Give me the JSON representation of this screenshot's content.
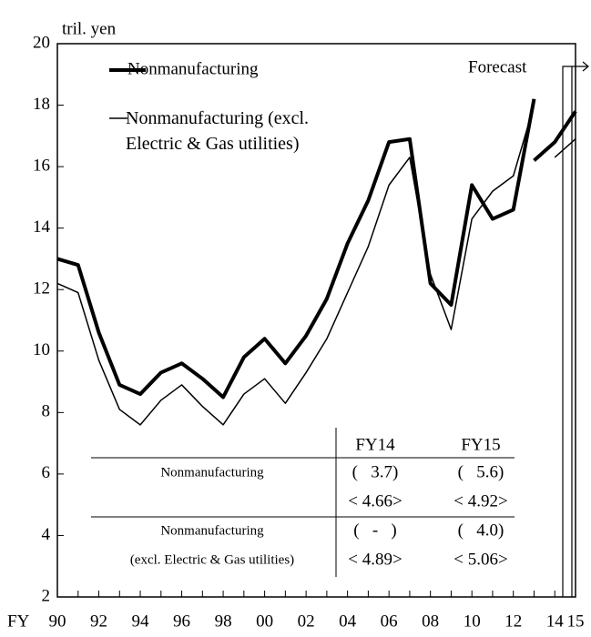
{
  "chart_data": {
    "type": "line",
    "y_label": "tril. yen",
    "x_label": "FY",
    "annotation": "Forecast",
    "x": [
      1990,
      1991,
      1992,
      1993,
      1994,
      1995,
      1996,
      1997,
      1998,
      1999,
      2000,
      2001,
      2002,
      2003,
      2004,
      2005,
      2006,
      2007,
      2008,
      2009,
      2010,
      2011,
      2012,
      2013,
      2014,
      2015
    ],
    "xlim": [
      1990,
      2015
    ],
    "xticks": [
      {
        "value": 1990,
        "label": "90"
      },
      {
        "value": 1992,
        "label": "92"
      },
      {
        "value": 1994,
        "label": "94"
      },
      {
        "value": 1996,
        "label": "96"
      },
      {
        "value": 1998,
        "label": "98"
      },
      {
        "value": 2000,
        "label": "00"
      },
      {
        "value": 2002,
        "label": "02"
      },
      {
        "value": 2004,
        "label": "04"
      },
      {
        "value": 2006,
        "label": "06"
      },
      {
        "value": 2008,
        "label": "08"
      },
      {
        "value": 2010,
        "label": "10"
      },
      {
        "value": 2012,
        "label": "12"
      },
      {
        "value": 2014,
        "label": "14"
      },
      {
        "value": 2015,
        "label": "15"
      }
    ],
    "ylim": [
      2,
      20
    ],
    "yticks": [
      2,
      4,
      6,
      8,
      10,
      12,
      14,
      16,
      18,
      20
    ],
    "series": [
      {
        "name": "Nonmanufacturing",
        "color": "#000000",
        "width": 4,
        "values": [
          13.0,
          12.8,
          10.6,
          8.9,
          8.6,
          9.3,
          9.6,
          9.1,
          8.5,
          9.8,
          10.4,
          9.6,
          10.5,
          11.7,
          13.5,
          14.9,
          16.8,
          16.9,
          12.2,
          11.5,
          15.4,
          14.3,
          14.6,
          18.2,
          null,
          null
        ],
        "forecast_values": [
          null,
          null,
          null,
          null,
          null,
          null,
          null,
          null,
          null,
          null,
          null,
          null,
          null,
          null,
          null,
          null,
          null,
          null,
          null,
          null,
          null,
          null,
          null,
          16.2,
          16.8,
          17.8
        ]
      },
      {
        "name": "Nonmanufacturing (excl. Electric & Gas utilities)",
        "color": "#000000",
        "width": 1.5,
        "values": [
          12.2,
          11.9,
          9.7,
          8.1,
          7.6,
          8.4,
          8.9,
          8.2,
          7.6,
          8.6,
          9.1,
          8.3,
          9.3,
          10.4,
          11.9,
          13.4,
          15.4,
          16.3,
          12.5,
          10.7,
          14.3,
          15.2,
          15.7,
          18.0,
          null,
          null
        ],
        "forecast_values": [
          null,
          null,
          null,
          null,
          null,
          null,
          null,
          null,
          null,
          null,
          null,
          null,
          null,
          null,
          null,
          null,
          null,
          null,
          null,
          null,
          null,
          null,
          null,
          null,
          16.3,
          16.9
        ]
      }
    ],
    "table": {
      "header": [
        "FY14",
        "FY15"
      ],
      "rows": [
        {
          "label": "Nonmanufacturing",
          "cells": [
            [
              "(   3.7)",
              "(   5.6)"
            ],
            [
              "< 4.66>",
              "< 4.92>"
            ]
          ]
        },
        {
          "label": "Nonmanufacturing",
          "sublabel": "(excl. Electric & Gas utilities)",
          "cells": [
            [
              "(   -   )",
              "(   4.0)"
            ],
            [
              "< 4.89>",
              "< 5.06>"
            ]
          ]
        }
      ]
    }
  }
}
